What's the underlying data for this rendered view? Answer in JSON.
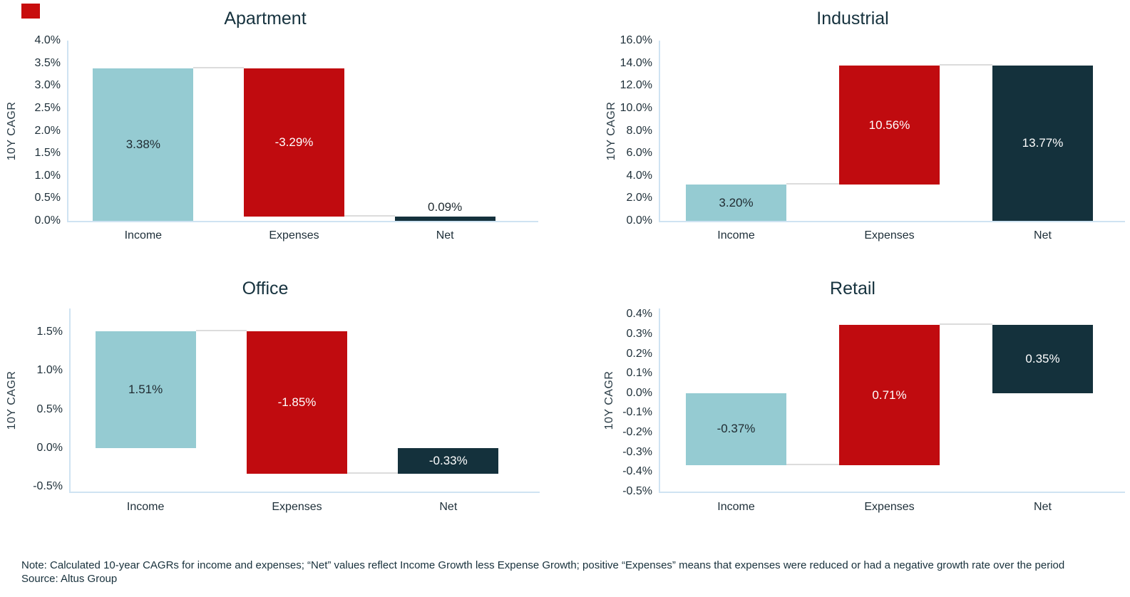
{
  "page": {
    "note_line1": "Note: Calculated 10-year CAGRs for income and expenses; “Net” values reflect Income Growth less Expense Growth; positive “Expenses” means that expenses were reduced or had a negative growth rate over the period",
    "note_line2": "Source: Altus Group"
  },
  "colors": {
    "teal": "#95cbd2",
    "red": "#c00b0f",
    "navy": "#14313c",
    "axis_line": "#cfe3f2",
    "connector": "#dcdcdc",
    "title_text": "#16323e",
    "text": "#1d2e38",
    "label_dark": "#1f2a30",
    "label_light": "#ffffff",
    "marker_red": "#c80d0d"
  },
  "chart_data": [
    {
      "type": "bar",
      "subtype": "waterfall",
      "title": "Apartment",
      "ylabel": "10Y CAGR",
      "ylim": [
        0,
        4.0
      ],
      "grid": false,
      "yticks": [
        {
          "value": 4.0,
          "label": "4.0%"
        },
        {
          "value": 3.5,
          "label": "3.5%"
        },
        {
          "value": 3.0,
          "label": "3.0%"
        },
        {
          "value": 2.5,
          "label": "2.5%"
        },
        {
          "value": 2.0,
          "label": "2.0%"
        },
        {
          "value": 1.5,
          "label": "1.5%"
        },
        {
          "value": 1.0,
          "label": "1.0%"
        },
        {
          "value": 0.5,
          "label": "0.5%"
        },
        {
          "value": 0.0,
          "label": "0.0%"
        }
      ],
      "categories": [
        "Income",
        "Expenses",
        "Net"
      ],
      "bars": [
        {
          "category": "Income",
          "value": 3.38,
          "label": "3.38%",
          "from": 0,
          "to": 3.38,
          "color_key": "teal",
          "label_style": "dark",
          "label_placement": "center"
        },
        {
          "category": "Expenses",
          "value": -3.29,
          "label": "-3.29%",
          "from": 0.09,
          "to": 3.38,
          "color_key": "red",
          "label_style": "light",
          "label_placement": "center"
        },
        {
          "category": "Net",
          "value": 0.09,
          "label": "0.09%",
          "from": 0,
          "to": 0.09,
          "color_key": "navy",
          "label_style": "dark",
          "label_placement": "above"
        }
      ],
      "connectors": [
        {
          "y": 3.38
        },
        {
          "y": 0.09
        }
      ]
    },
    {
      "type": "bar",
      "subtype": "waterfall",
      "title": "Industrial",
      "ylabel": "10Y CAGR",
      "ylim": [
        0,
        16.0
      ],
      "grid": false,
      "yticks": [
        {
          "value": 16.0,
          "label": "16.0%"
        },
        {
          "value": 14.0,
          "label": "14.0%"
        },
        {
          "value": 12.0,
          "label": "12.0%"
        },
        {
          "value": 10.0,
          "label": "10.0%"
        },
        {
          "value": 8.0,
          "label": "8.0%"
        },
        {
          "value": 6.0,
          "label": "6.0%"
        },
        {
          "value": 4.0,
          "label": "4.0%"
        },
        {
          "value": 2.0,
          "label": "2.0%"
        },
        {
          "value": 0.0,
          "label": "0.0%"
        }
      ],
      "categories": [
        "Income",
        "Expenses",
        "Net"
      ],
      "bars": [
        {
          "category": "Income",
          "value": 3.2,
          "label": "3.20%",
          "from": 0,
          "to": 3.2,
          "color_key": "teal",
          "label_style": "dark",
          "label_placement": "center"
        },
        {
          "category": "Expenses",
          "value": 10.56,
          "label": "10.56%",
          "from": 3.2,
          "to": 13.76,
          "color_key": "red",
          "label_style": "light",
          "label_placement": "center"
        },
        {
          "category": "Net",
          "value": 13.77,
          "label": "13.77%",
          "from": 0,
          "to": 13.77,
          "color_key": "navy",
          "label_style": "light",
          "label_placement": "center"
        }
      ],
      "connectors": [
        {
          "y": 3.2
        },
        {
          "y": 13.76
        }
      ]
    },
    {
      "type": "bar",
      "subtype": "waterfall",
      "title": "Office",
      "ylabel": "10Y CAGR",
      "ylim": [
        -0.56,
        1.8
      ],
      "grid": false,
      "yticks": [
        {
          "value": 1.5,
          "label": "1.5%"
        },
        {
          "value": 1.0,
          "label": "1.0%"
        },
        {
          "value": 0.5,
          "label": "0.5%"
        },
        {
          "value": 0.0,
          "label": "0.0%"
        },
        {
          "value": -0.5,
          "label": "-0.5%"
        }
      ],
      "categories": [
        "Income",
        "Expenses",
        "Net"
      ],
      "bars": [
        {
          "category": "Income",
          "value": 1.51,
          "label": "1.51%",
          "from": 0,
          "to": 1.51,
          "color_key": "teal",
          "label_style": "dark",
          "label_placement": "center"
        },
        {
          "category": "Expenses",
          "value": -1.85,
          "label": "-1.85%",
          "from": -0.335,
          "to": 1.51,
          "color_key": "red",
          "label_style": "light",
          "label_placement": "center"
        },
        {
          "category": "Net",
          "value": -0.33,
          "label": "-0.33%",
          "from": 0,
          "to": -0.335,
          "color_key": "navy",
          "label_style": "light",
          "label_placement": "center"
        }
      ],
      "connectors": [
        {
          "y": 1.51
        },
        {
          "y": -0.335
        }
      ]
    },
    {
      "type": "bar",
      "subtype": "waterfall",
      "title": "Retail",
      "ylabel": "10Y CAGR",
      "ylim": [
        -0.5,
        0.43
      ],
      "grid": false,
      "yticks": [
        {
          "value": 0.4,
          "label": "0.4%"
        },
        {
          "value": 0.3,
          "label": "0.3%"
        },
        {
          "value": 0.2,
          "label": "0.2%"
        },
        {
          "value": 0.1,
          "label": "0.1%"
        },
        {
          "value": 0.0,
          "label": "0.0%"
        },
        {
          "value": -0.1,
          "label": "-0.1%"
        },
        {
          "value": -0.2,
          "label": "-0.2%"
        },
        {
          "value": -0.3,
          "label": "-0.3%"
        },
        {
          "value": -0.4,
          "label": "-0.4%"
        },
        {
          "value": -0.5,
          "label": "-0.5%"
        }
      ],
      "categories": [
        "Income",
        "Expenses",
        "Net"
      ],
      "bars": [
        {
          "category": "Income",
          "value": -0.37,
          "label": "-0.37%",
          "from": 0,
          "to": -0.365,
          "color_key": "teal",
          "label_style": "dark",
          "label_placement": "center"
        },
        {
          "category": "Expenses",
          "value": 0.71,
          "label": "0.71%",
          "from": -0.365,
          "to": 0.345,
          "color_key": "red",
          "label_style": "light",
          "label_placement": "center"
        },
        {
          "category": "Net",
          "value": 0.35,
          "label": "0.35%",
          "from": 0,
          "to": 0.345,
          "color_key": "navy",
          "label_style": "light",
          "label_placement": "center"
        }
      ],
      "connectors": [
        {
          "y": -0.365
        },
        {
          "y": 0.345
        }
      ]
    }
  ]
}
